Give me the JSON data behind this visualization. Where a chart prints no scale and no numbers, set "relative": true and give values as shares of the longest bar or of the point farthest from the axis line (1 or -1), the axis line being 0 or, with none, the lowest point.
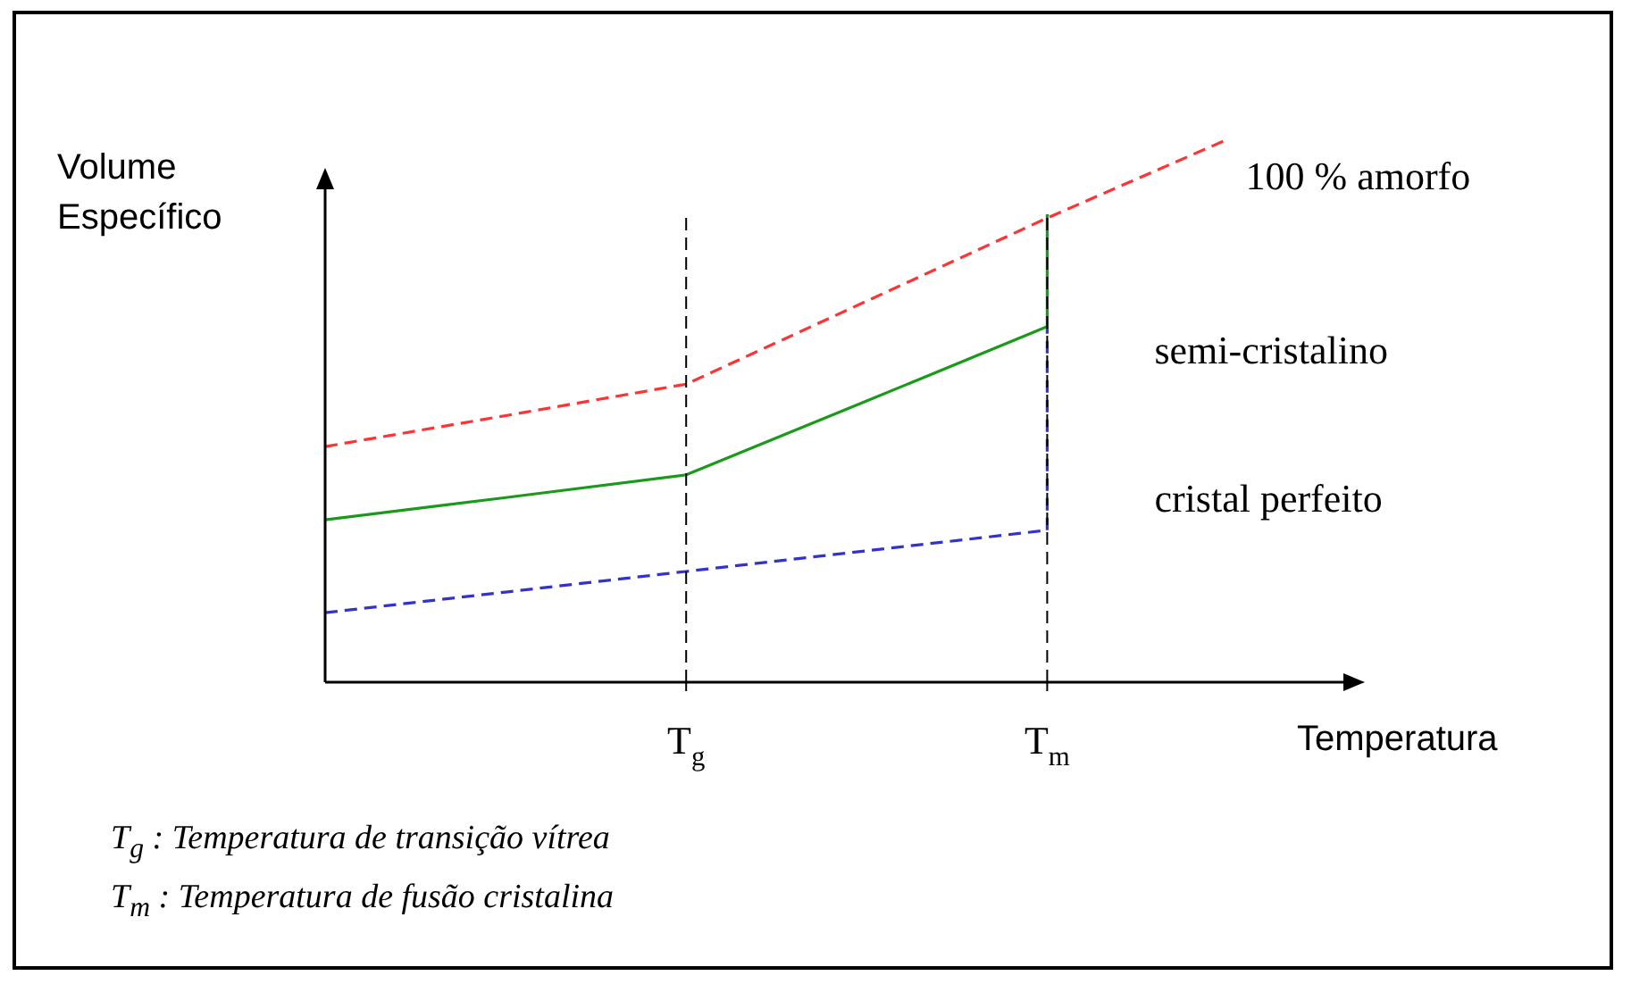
{
  "chart_data": {
    "type": "line",
    "relative": true,
    "xlabel": "Temperatura",
    "ylabel": "Volume\nEspecífico",
    "categories": [
      null,
      null,
      "T$_{g}$",
      null,
      "T$_{m}$",
      null
    ],
    "legend": false,
    "marker": "none",
    "series": [
      {
        "name": "100 % amorfo",
        "color": "#ff3333",
        "line_style": "dashed",
        "values": [
          0.434,
          0.491,
          0.549,
          0.702,
          0.855,
          1
        ]
      },
      {
        "name": "semi-cristalino",
        "color": "#1a9a1a",
        "line_style": "solid",
        "values": [
          0.299,
          0.34,
          0.382,
          0.518,
          0.655,
          null
        ]
      },
      {
        "name": "cristal perfeito",
        "color": "#3333cc",
        "line_style": "dashed",
        "values": [
          0.128,
          0.166,
          0.204,
          0.242,
          0.28,
          null
        ]
      },
      {
        "color": "#1a9a1a",
        "line_style": "solid",
        "x": [
          "T$_{m}$",
          "T$_{m}$"
        ],
        "values": [
          0.655,
          0.862
        ]
      },
      {
        "color": "#3333cc",
        "line_style": "dashed",
        "x": [
          "T$_{m}$",
          "T$_{m}$"
        ],
        "values": [
          0.28,
          0.655
        ]
      }
    ],
    "ref_lines": [
      {
        "axis": "x",
        "value": "T$_{g}$",
        "color": "#000000",
        "line_style": "dashed"
      },
      {
        "axis": "x",
        "value": "T$_{m}$",
        "color": "#000000",
        "line_style": "dashed"
      }
    ],
    "annotations": [
      "T$_{g}$ : Temperatura de transição vítrea",
      "T$_{m}$ : Temperatura de fusão cristalina"
    ]
  }
}
